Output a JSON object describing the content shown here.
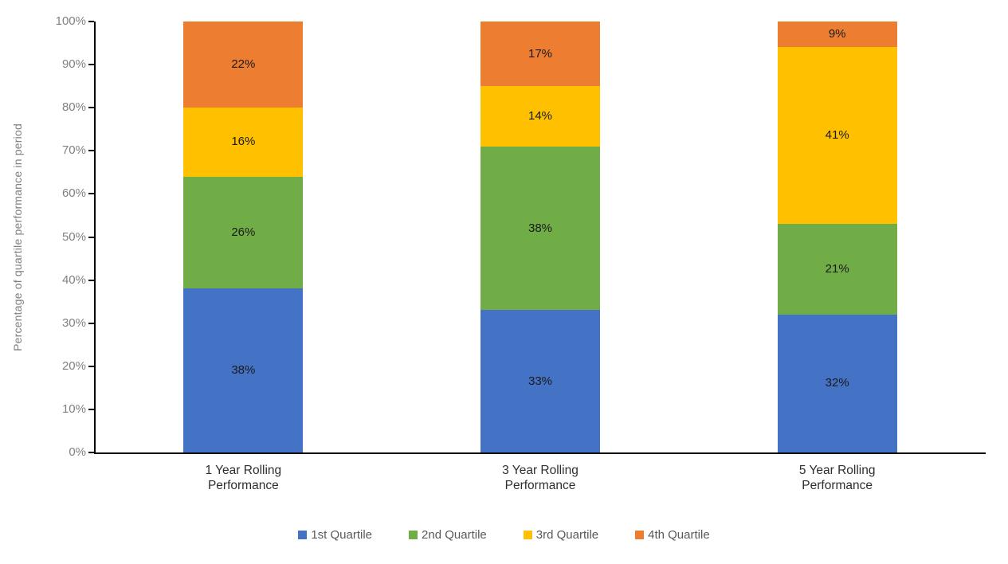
{
  "chart_data": {
    "type": "bar",
    "subtype": "stacked-100-vertical",
    "title": "",
    "ylabel": "Percentage of quartile performance in period",
    "xlabel": "",
    "categories": [
      "1 Year Rolling\nPerformance",
      "3 Year Rolling\nPerformance",
      "5 Year Rolling\nPerformance"
    ],
    "series": [
      {
        "name": "1st Quartile",
        "color": "#4472C4",
        "values": [
          38,
          33,
          32
        ]
      },
      {
        "name": "2nd Quartile",
        "color": "#70AD47",
        "values": [
          26,
          38,
          21
        ]
      },
      {
        "name": "3rd Quartile",
        "color": "#FFC000",
        "values": [
          16,
          14,
          41
        ]
      },
      {
        "name": "4th Quartile",
        "color": "#ED7D31",
        "values": [
          22,
          17,
          9
        ]
      }
    ],
    "data_label_suffix": "%",
    "y_ticks": [
      "0%",
      "10%",
      "20%",
      "30%",
      "40%",
      "50%",
      "60%",
      "70%",
      "80%",
      "90%",
      "100%"
    ],
    "ylim": [
      0,
      100
    ],
    "grid": false,
    "legend_position": "bottom"
  }
}
